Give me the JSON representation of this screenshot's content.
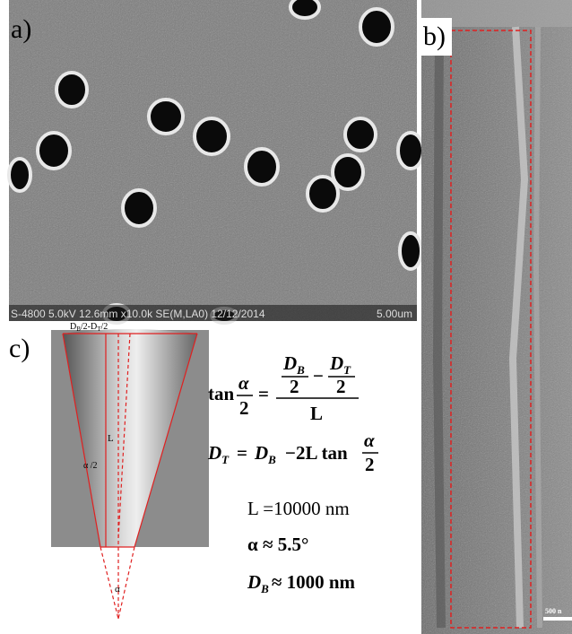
{
  "panels": {
    "a": {
      "label": "a)",
      "info_bar": "S-4800 5.0kV 12.6mm x10.0k SE(M,LA0) 12/12/2014",
      "scale": "5.00um"
    },
    "b": {
      "label": "b)",
      "scale": "500 n"
    },
    "c": {
      "label": "c)",
      "cone": {
        "top": "D",
        "top_sub1": "B",
        "top_mid": "/2-D",
        "top_sub2": "T",
        "top_end": "/2",
        "length": "L",
        "half_angle": "α /2",
        "angle": "α"
      }
    }
  },
  "equations": {
    "eq1": {
      "fn": "tan",
      "alpha": "α",
      "two": "2",
      "eq": "=",
      "d": "D",
      "b": "B",
      "t": "T",
      "minus": "−",
      "den": "L"
    },
    "eq2": {
      "d": "D",
      "t": "T",
      "eq": "=",
      "b": "B",
      "rest": "−2L tan",
      "alpha": "α",
      "two": "2"
    },
    "eq3": "L =10000 nm",
    "eq4": "α ≈ 5.5°",
    "eq5": {
      "d": "D",
      "b": "B",
      "rest": "≈ 1000 nm"
    }
  }
}
